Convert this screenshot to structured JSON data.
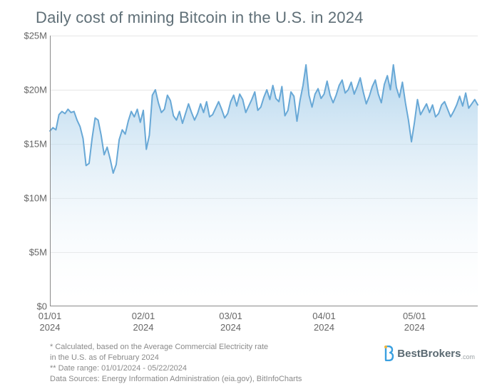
{
  "title": "Daily cost of mining Bitcoin in the U.S. in 2024",
  "chart": {
    "type": "area",
    "background_color": "#ffffff",
    "grid_color": "#e6e6e6",
    "axis_color": "#8a8a8a",
    "line_color": "#68a8d6",
    "line_width": 2,
    "fill_gradient_top": "#a8cfea",
    "fill_gradient_bottom": "#ffffff",
    "fill_gradient_top_opacity": 0.85,
    "fill_gradient_bottom_opacity": 0.05,
    "title_fontsize": 22,
    "label_fontsize": 13,
    "ylim": [
      0,
      25
    ],
    "ytick_step": 5,
    "y_ticks": [
      {
        "v": 0,
        "label": "$0"
      },
      {
        "v": 5,
        "label": "$5M"
      },
      {
        "v": 10,
        "label": "$10M"
      },
      {
        "v": 15,
        "label": "$15M"
      },
      {
        "v": 20,
        "label": "$20M"
      },
      {
        "v": 25,
        "label": "$25M"
      }
    ],
    "xlim": [
      0,
      142
    ],
    "x_ticks": [
      {
        "i": 0,
        "top": "01/01",
        "bot": "2024"
      },
      {
        "i": 31,
        "top": "02/01",
        "bot": "2024"
      },
      {
        "i": 60,
        "top": "03/01",
        "bot": "2024"
      },
      {
        "i": 91,
        "top": "04/01",
        "bot": "2024"
      },
      {
        "i": 121,
        "top": "05/01",
        "bot": "2024"
      }
    ],
    "values": [
      16.2,
      16.5,
      16.3,
      17.7,
      18.0,
      17.8,
      18.2,
      17.9,
      18.0,
      17.2,
      16.6,
      15.5,
      13.0,
      13.2,
      15.5,
      17.4,
      17.2,
      15.8,
      14.0,
      14.7,
      13.6,
      12.3,
      13.1,
      15.4,
      16.3,
      15.9,
      17.1,
      18.0,
      17.5,
      18.2,
      17.0,
      18.1,
      14.5,
      15.8,
      19.5,
      20.0,
      18.8,
      17.9,
      18.2,
      19.5,
      19.0,
      17.6,
      17.2,
      18.0,
      16.9,
      17.8,
      18.7,
      17.9,
      17.2,
      17.8,
      18.7,
      17.9,
      18.9,
      17.5,
      17.7,
      18.3,
      18.9,
      18.2,
      17.4,
      17.8,
      18.9,
      19.5,
      18.5,
      19.6,
      19.1,
      17.9,
      18.5,
      19.1,
      19.8,
      18.1,
      18.4,
      19.3,
      20.0,
      19.1,
      20.4,
      19.2,
      18.9,
      20.3,
      17.6,
      18.1,
      19.8,
      19.4,
      17.1,
      19.0,
      20.4,
      22.3,
      19.5,
      18.4,
      19.6,
      20.1,
      19.2,
      19.6,
      20.8,
      19.5,
      18.8,
      19.5,
      20.4,
      20.9,
      19.7,
      20.0,
      20.7,
      19.6,
      20.3,
      21.1,
      19.8,
      18.7,
      19.4,
      20.3,
      20.9,
      19.6,
      18.8,
      20.5,
      21.3,
      20.0,
      22.3,
      20.2,
      19.3,
      20.7,
      18.8,
      17.2,
      15.2,
      17.0,
      19.1,
      17.7,
      18.2,
      18.7,
      17.9,
      18.6,
      17.5,
      17.8,
      18.6,
      18.9,
      18.2,
      17.5,
      18.0,
      18.6,
      19.4,
      18.5,
      19.7,
      18.3,
      18.7,
      19.1,
      18.6
    ]
  },
  "footnotes": {
    "l1": "* Calculated, based on the Average Commercial Electricity rate",
    "l2": "in the U.S. as of February 2024",
    "l3": "** Date range: 01/01/2024 - 05/22/2024",
    "l4": "Data Sources: Energy Information Administration (eia.gov), BitInfoCharts"
  },
  "brand": {
    "name": "BestBrokers",
    "suffix": ".com",
    "icon_color_primary": "#3aa0e0",
    "icon_color_accent": "#f2b63a"
  }
}
